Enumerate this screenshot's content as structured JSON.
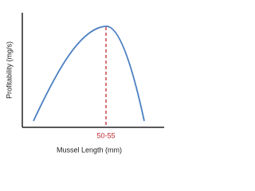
{
  "x_axis_label": "Mussel Length (mm)",
  "y_axis_label": "Profitability (mg/s)",
  "peak_label": "50-55"
}
